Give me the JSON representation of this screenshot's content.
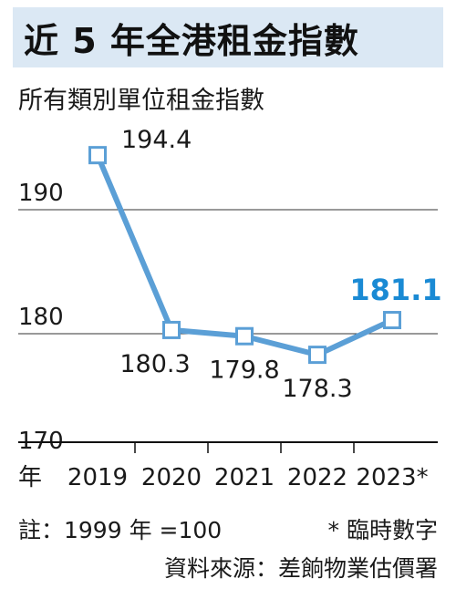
{
  "title": "近 5 年全港租金指數",
  "subtitle": "所有類別單位租金指數",
  "note": "註：1999 年 =100",
  "footnote": "* 臨時數字",
  "source": "資料來源：差餉物業估價署",
  "colors": {
    "line": "#5b9fd6",
    "highlight": "#1a8ad4",
    "banner": "#dbe8f4",
    "grid": "#333333"
  },
  "chart_data": {
    "type": "line",
    "title": "近 5 年全港租金指數",
    "ylabel": "所有類別單位租金指數",
    "xlabel": "年",
    "categories": [
      "2019",
      "2020",
      "2021",
      "2022",
      "2023*"
    ],
    "values": [
      194.4,
      180.3,
      179.8,
      178.3,
      181.1
    ],
    "data_labels": [
      "194.4",
      "180.3",
      "179.8",
      "178.3",
      "181.1"
    ],
    "highlight_index": 4,
    "ylim": [
      170,
      197
    ],
    "yticks": [
      170,
      180,
      190
    ],
    "ytick_labels": [
      "170",
      "180",
      "190"
    ],
    "grid": true
  }
}
